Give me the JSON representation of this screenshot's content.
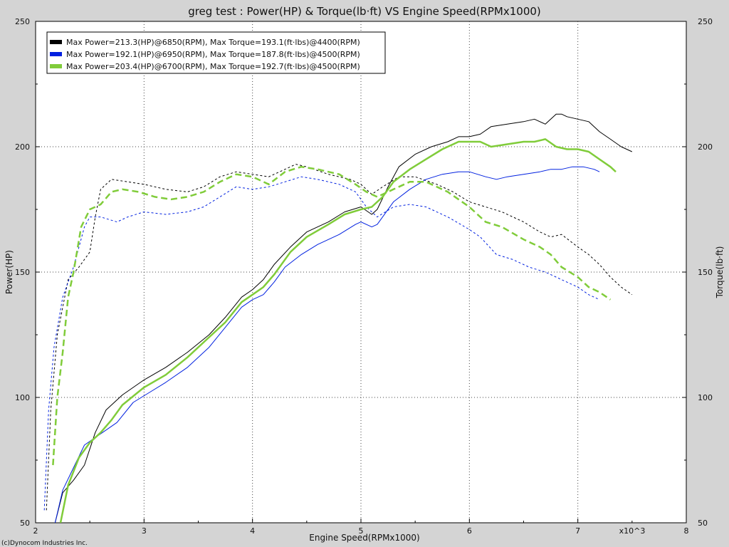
{
  "chart_data": {
    "type": "line",
    "title": "greg test : Power(HP) & Torque(lb·ft) VS Engine Speed(RPMx1000)",
    "xlabel": "Engine Speed(RPMx1000)",
    "ylabel_left": "Power(HP)",
    "ylabel_right": "Torque(lb·ft)",
    "x_multiplier_label": "x10^3",
    "copyright": "(c)Dynocom Industries Inc.",
    "xlim": [
      2,
      8
    ],
    "ylim": [
      50,
      250
    ],
    "x_ticks": [
      "2",
      "3",
      "4",
      "5",
      "6",
      "7",
      "8"
    ],
    "y_ticks_left": [
      "50",
      "100",
      "150",
      "200",
      "250"
    ],
    "y_ticks_right": [
      "50",
      "100",
      "150",
      "200",
      "250"
    ],
    "grid": true,
    "legend_position": "top-left",
    "runs": [
      {
        "legend": "Max Power=213.3(HP)@6850(RPM), Max Torque=193.1(ft·lbs)@4400(RPM)",
        "color": "#000000",
        "width": 1,
        "power": [
          [
            2.18,
            50
          ],
          [
            2.25,
            62
          ],
          [
            2.35,
            67
          ],
          [
            2.45,
            73
          ],
          [
            2.55,
            86
          ],
          [
            2.65,
            95
          ],
          [
            2.8,
            101
          ],
          [
            3.0,
            107
          ],
          [
            3.2,
            112
          ],
          [
            3.4,
            118
          ],
          [
            3.6,
            125
          ],
          [
            3.75,
            132
          ],
          [
            3.9,
            140
          ],
          [
            4.0,
            143
          ],
          [
            4.1,
            147
          ],
          [
            4.2,
            153
          ],
          [
            4.35,
            160
          ],
          [
            4.5,
            166
          ],
          [
            4.7,
            170
          ],
          [
            4.85,
            174
          ],
          [
            5.0,
            176
          ],
          [
            5.1,
            173
          ],
          [
            5.15,
            175
          ],
          [
            5.25,
            184
          ],
          [
            5.35,
            192
          ],
          [
            5.5,
            197
          ],
          [
            5.65,
            200
          ],
          [
            5.8,
            202
          ],
          [
            5.9,
            204
          ],
          [
            6.0,
            204
          ],
          [
            6.1,
            205
          ],
          [
            6.2,
            208
          ],
          [
            6.35,
            209
          ],
          [
            6.5,
            210
          ],
          [
            6.6,
            211
          ],
          [
            6.7,
            209
          ],
          [
            6.8,
            213
          ],
          [
            6.85,
            213
          ],
          [
            6.9,
            212
          ],
          [
            7.0,
            211
          ],
          [
            7.1,
            210
          ],
          [
            7.2,
            206
          ],
          [
            7.3,
            203
          ],
          [
            7.4,
            200
          ],
          [
            7.5,
            198
          ]
        ],
        "torque": [
          [
            2.1,
            55
          ],
          [
            2.14,
            95
          ],
          [
            2.2,
            125
          ],
          [
            2.3,
            147
          ],
          [
            2.4,
            152
          ],
          [
            2.5,
            158
          ],
          [
            2.55,
            172
          ],
          [
            2.6,
            183
          ],
          [
            2.7,
            187
          ],
          [
            2.85,
            186
          ],
          [
            3.0,
            185
          ],
          [
            3.2,
            183
          ],
          [
            3.4,
            182
          ],
          [
            3.55,
            184
          ],
          [
            3.7,
            188
          ],
          [
            3.85,
            190
          ],
          [
            4.0,
            189
          ],
          [
            4.15,
            188
          ],
          [
            4.3,
            191
          ],
          [
            4.4,
            193
          ],
          [
            4.5,
            192
          ],
          [
            4.7,
            189
          ],
          [
            4.9,
            187
          ],
          [
            5.0,
            185
          ],
          [
            5.1,
            181
          ],
          [
            5.2,
            184
          ],
          [
            5.35,
            188
          ],
          [
            5.5,
            188
          ],
          [
            5.7,
            185
          ],
          [
            5.85,
            182
          ],
          [
            6.0,
            178
          ],
          [
            6.15,
            176
          ],
          [
            6.3,
            174
          ],
          [
            6.5,
            170
          ],
          [
            6.65,
            166
          ],
          [
            6.75,
            164
          ],
          [
            6.85,
            165
          ],
          [
            7.0,
            160
          ],
          [
            7.1,
            157
          ],
          [
            7.2,
            153
          ],
          [
            7.3,
            148
          ],
          [
            7.4,
            144
          ],
          [
            7.5,
            141
          ]
        ]
      },
      {
        "legend": "Max Power=192.1(HP)@6950(RPM), Max Torque=187.8(ft·lbs)@4500(RPM)",
        "color": "#0020e0",
        "width": 1,
        "power": [
          [
            2.18,
            50
          ],
          [
            2.25,
            63
          ],
          [
            2.35,
            72
          ],
          [
            2.45,
            81
          ],
          [
            2.55,
            84
          ],
          [
            2.65,
            87
          ],
          [
            2.75,
            90
          ],
          [
            2.9,
            98
          ],
          [
            3.05,
            102
          ],
          [
            3.2,
            106
          ],
          [
            3.4,
            112
          ],
          [
            3.6,
            120
          ],
          [
            3.75,
            128
          ],
          [
            3.9,
            136
          ],
          [
            4.0,
            139
          ],
          [
            4.1,
            141
          ],
          [
            4.2,
            146
          ],
          [
            4.3,
            152
          ],
          [
            4.45,
            157
          ],
          [
            4.6,
            161
          ],
          [
            4.8,
            165
          ],
          [
            4.95,
            169
          ],
          [
            5.0,
            170
          ],
          [
            5.1,
            168
          ],
          [
            5.15,
            169
          ],
          [
            5.3,
            178
          ],
          [
            5.45,
            183
          ],
          [
            5.6,
            187
          ],
          [
            5.75,
            189
          ],
          [
            5.9,
            190
          ],
          [
            6.0,
            190
          ],
          [
            6.15,
            188
          ],
          [
            6.25,
            187
          ],
          [
            6.35,
            188
          ],
          [
            6.5,
            189
          ],
          [
            6.65,
            190
          ],
          [
            6.75,
            191
          ],
          [
            6.85,
            191
          ],
          [
            6.95,
            192
          ],
          [
            7.05,
            192
          ],
          [
            7.15,
            191
          ],
          [
            7.2,
            190
          ]
        ],
        "torque": [
          [
            2.08,
            55
          ],
          [
            2.12,
            95
          ],
          [
            2.17,
            120
          ],
          [
            2.25,
            140
          ],
          [
            2.35,
            152
          ],
          [
            2.45,
            168
          ],
          [
            2.5,
            172
          ],
          [
            2.6,
            172
          ],
          [
            2.75,
            170
          ],
          [
            2.85,
            172
          ],
          [
            3.0,
            174
          ],
          [
            3.2,
            173
          ],
          [
            3.4,
            174
          ],
          [
            3.55,
            176
          ],
          [
            3.7,
            180
          ],
          [
            3.85,
            184
          ],
          [
            4.0,
            183
          ],
          [
            4.15,
            184
          ],
          [
            4.3,
            186
          ],
          [
            4.45,
            188
          ],
          [
            4.6,
            187
          ],
          [
            4.8,
            185
          ],
          [
            4.95,
            182
          ],
          [
            5.05,
            176
          ],
          [
            5.15,
            172
          ],
          [
            5.3,
            176
          ],
          [
            5.45,
            177
          ],
          [
            5.6,
            176
          ],
          [
            5.8,
            172
          ],
          [
            6.0,
            167
          ],
          [
            6.1,
            164
          ],
          [
            6.25,
            157
          ],
          [
            6.4,
            155
          ],
          [
            6.55,
            152
          ],
          [
            6.7,
            150
          ],
          [
            6.85,
            147
          ],
          [
            7.0,
            144
          ],
          [
            7.1,
            141
          ],
          [
            7.2,
            139
          ]
        ]
      },
      {
        "legend": "Max Power=203.4(HP)@6700(RPM), Max Torque=192.7(ft·lbs)@4500(RPM)",
        "color": "#80cc3a",
        "width": 2.5,
        "power": [
          [
            2.23,
            50
          ],
          [
            2.3,
            65
          ],
          [
            2.4,
            76
          ],
          [
            2.5,
            82
          ],
          [
            2.6,
            86
          ],
          [
            2.7,
            91
          ],
          [
            2.8,
            97
          ],
          [
            3.0,
            104
          ],
          [
            3.2,
            109
          ],
          [
            3.4,
            116
          ],
          [
            3.6,
            124
          ],
          [
            3.75,
            130
          ],
          [
            3.9,
            138
          ],
          [
            4.0,
            141
          ],
          [
            4.1,
            144
          ],
          [
            4.2,
            149
          ],
          [
            4.35,
            158
          ],
          [
            4.5,
            164
          ],
          [
            4.7,
            169
          ],
          [
            4.85,
            173
          ],
          [
            5.0,
            175
          ],
          [
            5.1,
            176
          ],
          [
            5.2,
            180
          ],
          [
            5.3,
            186
          ],
          [
            5.45,
            191
          ],
          [
            5.6,
            195
          ],
          [
            5.75,
            199
          ],
          [
            5.9,
            202
          ],
          [
            6.0,
            202
          ],
          [
            6.1,
            202
          ],
          [
            6.2,
            200
          ],
          [
            6.35,
            201
          ],
          [
            6.5,
            202
          ],
          [
            6.6,
            202
          ],
          [
            6.7,
            203
          ],
          [
            6.8,
            200
          ],
          [
            6.9,
            199
          ],
          [
            7.0,
            199
          ],
          [
            7.1,
            198
          ],
          [
            7.2,
            195
          ],
          [
            7.3,
            192
          ],
          [
            7.35,
            190
          ]
        ],
        "torque": [
          [
            2.16,
            73
          ],
          [
            2.2,
            100
          ],
          [
            2.25,
            118
          ],
          [
            2.3,
            140
          ],
          [
            2.35,
            150
          ],
          [
            2.42,
            168
          ],
          [
            2.5,
            175
          ],
          [
            2.6,
            177
          ],
          [
            2.7,
            182
          ],
          [
            2.8,
            183
          ],
          [
            2.95,
            182
          ],
          [
            3.1,
            180
          ],
          [
            3.25,
            179
          ],
          [
            3.4,
            180
          ],
          [
            3.55,
            182
          ],
          [
            3.7,
            186
          ],
          [
            3.85,
            189
          ],
          [
            4.0,
            188
          ],
          [
            4.15,
            185
          ],
          [
            4.3,
            190
          ],
          [
            4.45,
            192
          ],
          [
            4.6,
            191
          ],
          [
            4.8,
            189
          ],
          [
            4.95,
            185
          ],
          [
            5.05,
            182
          ],
          [
            5.15,
            180
          ],
          [
            5.3,
            183
          ],
          [
            5.45,
            186
          ],
          [
            5.6,
            186
          ],
          [
            5.8,
            182
          ],
          [
            6.0,
            176
          ],
          [
            6.15,
            170
          ],
          [
            6.3,
            168
          ],
          [
            6.5,
            163
          ],
          [
            6.65,
            160
          ],
          [
            6.75,
            157
          ],
          [
            6.85,
            152
          ],
          [
            7.0,
            148
          ],
          [
            7.1,
            144
          ],
          [
            7.2,
            142
          ],
          [
            7.3,
            139
          ]
        ]
      }
    ]
  }
}
